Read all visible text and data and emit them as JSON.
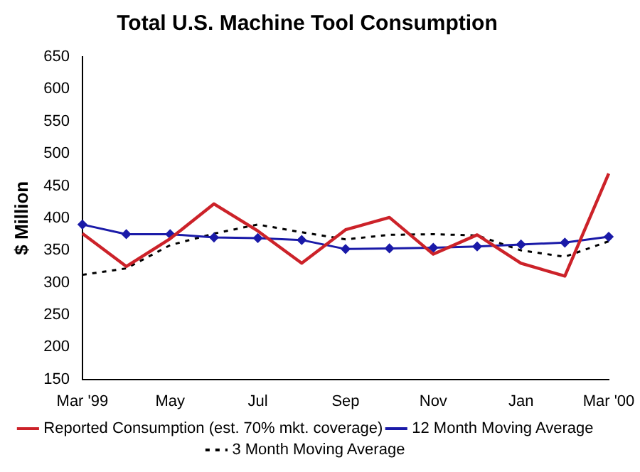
{
  "chart_data": {
    "type": "line",
    "title": "Total U.S. Machine Tool Consumption",
    "ylabel": "$ Million",
    "categories": [
      "Mar '99",
      null,
      "May",
      null,
      "Jul",
      null,
      "Sep",
      null,
      "Nov",
      null,
      "Jan",
      null,
      "Mar '00"
    ],
    "series": [
      {
        "name": "Reported Consumption (est. 70% mkt. coverage)",
        "color": "#cc2229",
        "marker": "none",
        "line_style": "solid",
        "values": [
          376,
          325,
          368,
          422,
          380,
          330,
          382,
          401,
          344,
          374,
          330,
          310,
          469
        ]
      },
      {
        "name": "12 Month Moving Average",
        "color": "#1a1aa8",
        "marker": "diamond",
        "line_style": "solid",
        "values": [
          390,
          375,
          375,
          370,
          369,
          366,
          352,
          353,
          354,
          356,
          359,
          362,
          371
        ]
      },
      {
        "name": "3 Month Moving Average",
        "color": "#000000",
        "marker": "none",
        "line_style": "dashed",
        "values": [
          312,
          322,
          358,
          376,
          390,
          378,
          367,
          374,
          375,
          373,
          350,
          340,
          364
        ]
      }
    ],
    "ylim": [
      150,
      650
    ],
    "yticks": [
      150,
      200,
      250,
      300,
      350,
      400,
      450,
      500,
      550,
      600,
      650
    ],
    "grid": false,
    "legend": "bottom"
  }
}
